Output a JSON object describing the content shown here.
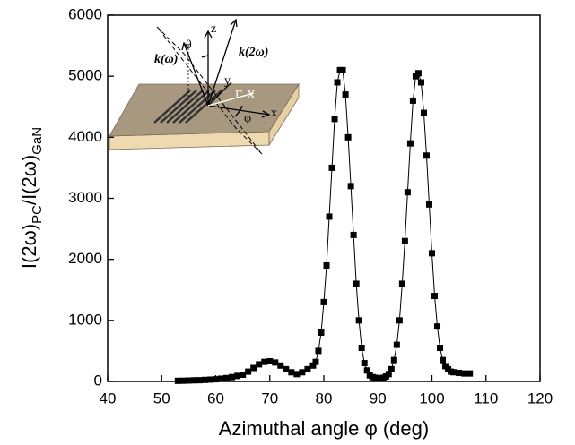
{
  "chart_data": {
    "type": "line",
    "xlabel": "Azimuthal angle φ (deg)",
    "ylabel": {
      "parts": [
        "I(2ω)",
        "PC",
        "/I(2ω)",
        "GaN"
      ]
    },
    "color": "#000000",
    "markers": true,
    "xlim": [
      40,
      120
    ],
    "xticks": [
      40,
      50,
      60,
      70,
      80,
      90,
      100,
      110,
      120
    ],
    "ylim": [
      0,
      6000
    ],
    "yticks": [
      0,
      1000,
      2000,
      3000,
      4000,
      5000,
      6000
    ],
    "x": [
      53,
      54,
      55,
      56,
      57,
      58,
      59,
      60,
      61,
      62,
      63,
      64,
      65,
      66,
      67,
      68,
      69,
      70,
      71,
      72,
      73,
      74,
      75,
      76,
      77,
      78,
      78.5,
      79,
      79.5,
      80,
      80.5,
      81,
      81.5,
      82,
      82.5,
      83,
      83.5,
      84,
      84.5,
      85,
      85.5,
      86,
      86.5,
      87,
      87.5,
      88,
      88.5,
      89,
      89.5,
      90,
      90.5,
      91,
      91.5,
      92,
      92.5,
      93,
      93.5,
      94,
      94.5,
      95,
      95.5,
      96,
      96.5,
      97,
      97.5,
      98,
      98.5,
      99,
      99.5,
      100,
      100.5,
      101,
      101.5,
      102,
      102.5,
      103,
      103.5,
      104,
      105,
      106,
      107
    ],
    "values": [
      10,
      12,
      15,
      18,
      20,
      25,
      30,
      35,
      45,
      55,
      70,
      90,
      110,
      160,
      220,
      280,
      320,
      330,
      310,
      260,
      200,
      150,
      120,
      150,
      200,
      260,
      320,
      500,
      800,
      1300,
      1900,
      2700,
      3500,
      4300,
      4900,
      5100,
      5100,
      4700,
      4000,
      3200,
      2400,
      1600,
      1000,
      550,
      300,
      180,
      100,
      70,
      60,
      50,
      50,
      60,
      80,
      120,
      200,
      350,
      600,
      1000,
      1600,
      2300,
      3100,
      3900,
      4600,
      5000,
      5050,
      4900,
      4400,
      3700,
      2900,
      2100,
      1400,
      900,
      550,
      350,
      250,
      200,
      160,
      150,
      140,
      130,
      130
    ],
    "inset": {
      "labels": [
        "θ",
        "z",
        "k(ω)",
        "k(2ω)",
        "y",
        "Γ-X",
        "φ",
        "x"
      ]
    }
  }
}
